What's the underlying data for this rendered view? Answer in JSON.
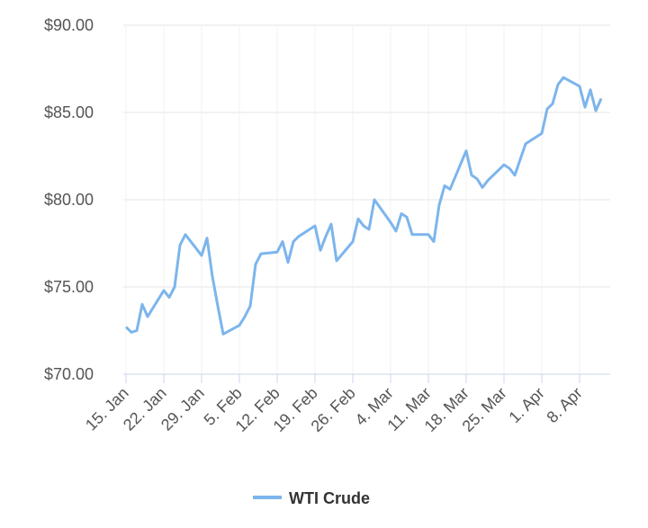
{
  "chart_data": {
    "type": "line",
    "x": [
      "Jan 15",
      "Jan 16",
      "Jan 17",
      "Jan 18",
      "Jan 19",
      "Jan 22",
      "Jan 23",
      "Jan 24",
      "Jan 25",
      "Jan 26",
      "Jan 29",
      "Jan 30",
      "Jan 31",
      "Feb 1",
      "Feb 2",
      "Feb 5",
      "Feb 6",
      "Feb 7",
      "Feb 8",
      "Feb 9",
      "Feb 12",
      "Feb 13",
      "Feb 14",
      "Feb 15",
      "Feb 16",
      "Feb 19",
      "Feb 20",
      "Feb 21",
      "Feb 22",
      "Feb 23",
      "Feb 26",
      "Feb 27",
      "Feb 28",
      "Feb 29",
      "Mar 1",
      "Mar 4",
      "Mar 5",
      "Mar 6",
      "Mar 7",
      "Mar 8",
      "Mar 11",
      "Mar 12",
      "Mar 13",
      "Mar 14",
      "Mar 15",
      "Mar 18",
      "Mar 19",
      "Mar 20",
      "Mar 21",
      "Mar 22",
      "Mar 25",
      "Mar 26",
      "Mar 27",
      "Mar 28",
      "Mar 29",
      "Apr 1",
      "Apr 2",
      "Apr 3",
      "Apr 4",
      "Apr 5",
      "Apr 8",
      "Apr 9",
      "Apr 10",
      "Apr 11",
      "Apr 12"
    ],
    "series": [
      {
        "name": "WTI Crude",
        "color": "#7cb5ec",
        "values": [
          72.7,
          72.4,
          72.5,
          74.0,
          73.3,
          74.8,
          74.4,
          75.0,
          77.4,
          78.0,
          76.8,
          77.8,
          75.6,
          73.9,
          72.3,
          72.8,
          73.3,
          73.9,
          76.3,
          76.9,
          77.0,
          77.6,
          76.4,
          77.6,
          77.9,
          78.5,
          77.1,
          77.9,
          78.6,
          76.5,
          77.6,
          78.9,
          78.5,
          78.3,
          80.0,
          78.7,
          78.2,
          79.2,
          79.0,
          78.0,
          78.0,
          77.6,
          79.7,
          80.8,
          80.6,
          82.8,
          81.4,
          81.2,
          80.7,
          81.1,
          82.0,
          81.8,
          81.4,
          82.3,
          83.2,
          83.8,
          85.2,
          85.5,
          86.6,
          87.0,
          86.5,
          85.3,
          86.3,
          85.1,
          85.8
        ]
      }
    ],
    "xlim": [
      "Jan 15",
      "Apr 12"
    ],
    "xticks": [
      {
        "value": "Jan 15",
        "label": "15. Jan"
      },
      {
        "value": "Jan 22",
        "label": "22. Jan"
      },
      {
        "value": "Jan 29",
        "label": "29. Jan"
      },
      {
        "value": "Feb 5",
        "label": "5. Feb"
      },
      {
        "value": "Feb 12",
        "label": "12. Feb"
      },
      {
        "value": "Feb 19",
        "label": "19. Feb"
      },
      {
        "value": "Feb 26",
        "label": "26. Feb"
      },
      {
        "value": "Mar 4",
        "label": "4. Mar"
      },
      {
        "value": "Mar 11",
        "label": "11. Mar"
      },
      {
        "value": "Mar 18",
        "label": "18. Mar"
      },
      {
        "value": "Mar 25",
        "label": "25. Mar"
      },
      {
        "value": "Apr 1",
        "label": "1. Apr"
      },
      {
        "value": "Apr 8",
        "label": "8. Apr"
      }
    ],
    "ylim": [
      70,
      90
    ],
    "yticks": [
      {
        "value": 70,
        "label": "$70.00"
      },
      {
        "value": 75,
        "label": "$75.00"
      },
      {
        "value": 80,
        "label": "$80.00"
      },
      {
        "value": 85,
        "label": "$85.00"
      },
      {
        "value": 90,
        "label": "$90.00"
      }
    ],
    "grid": true,
    "legend": "bottom"
  }
}
